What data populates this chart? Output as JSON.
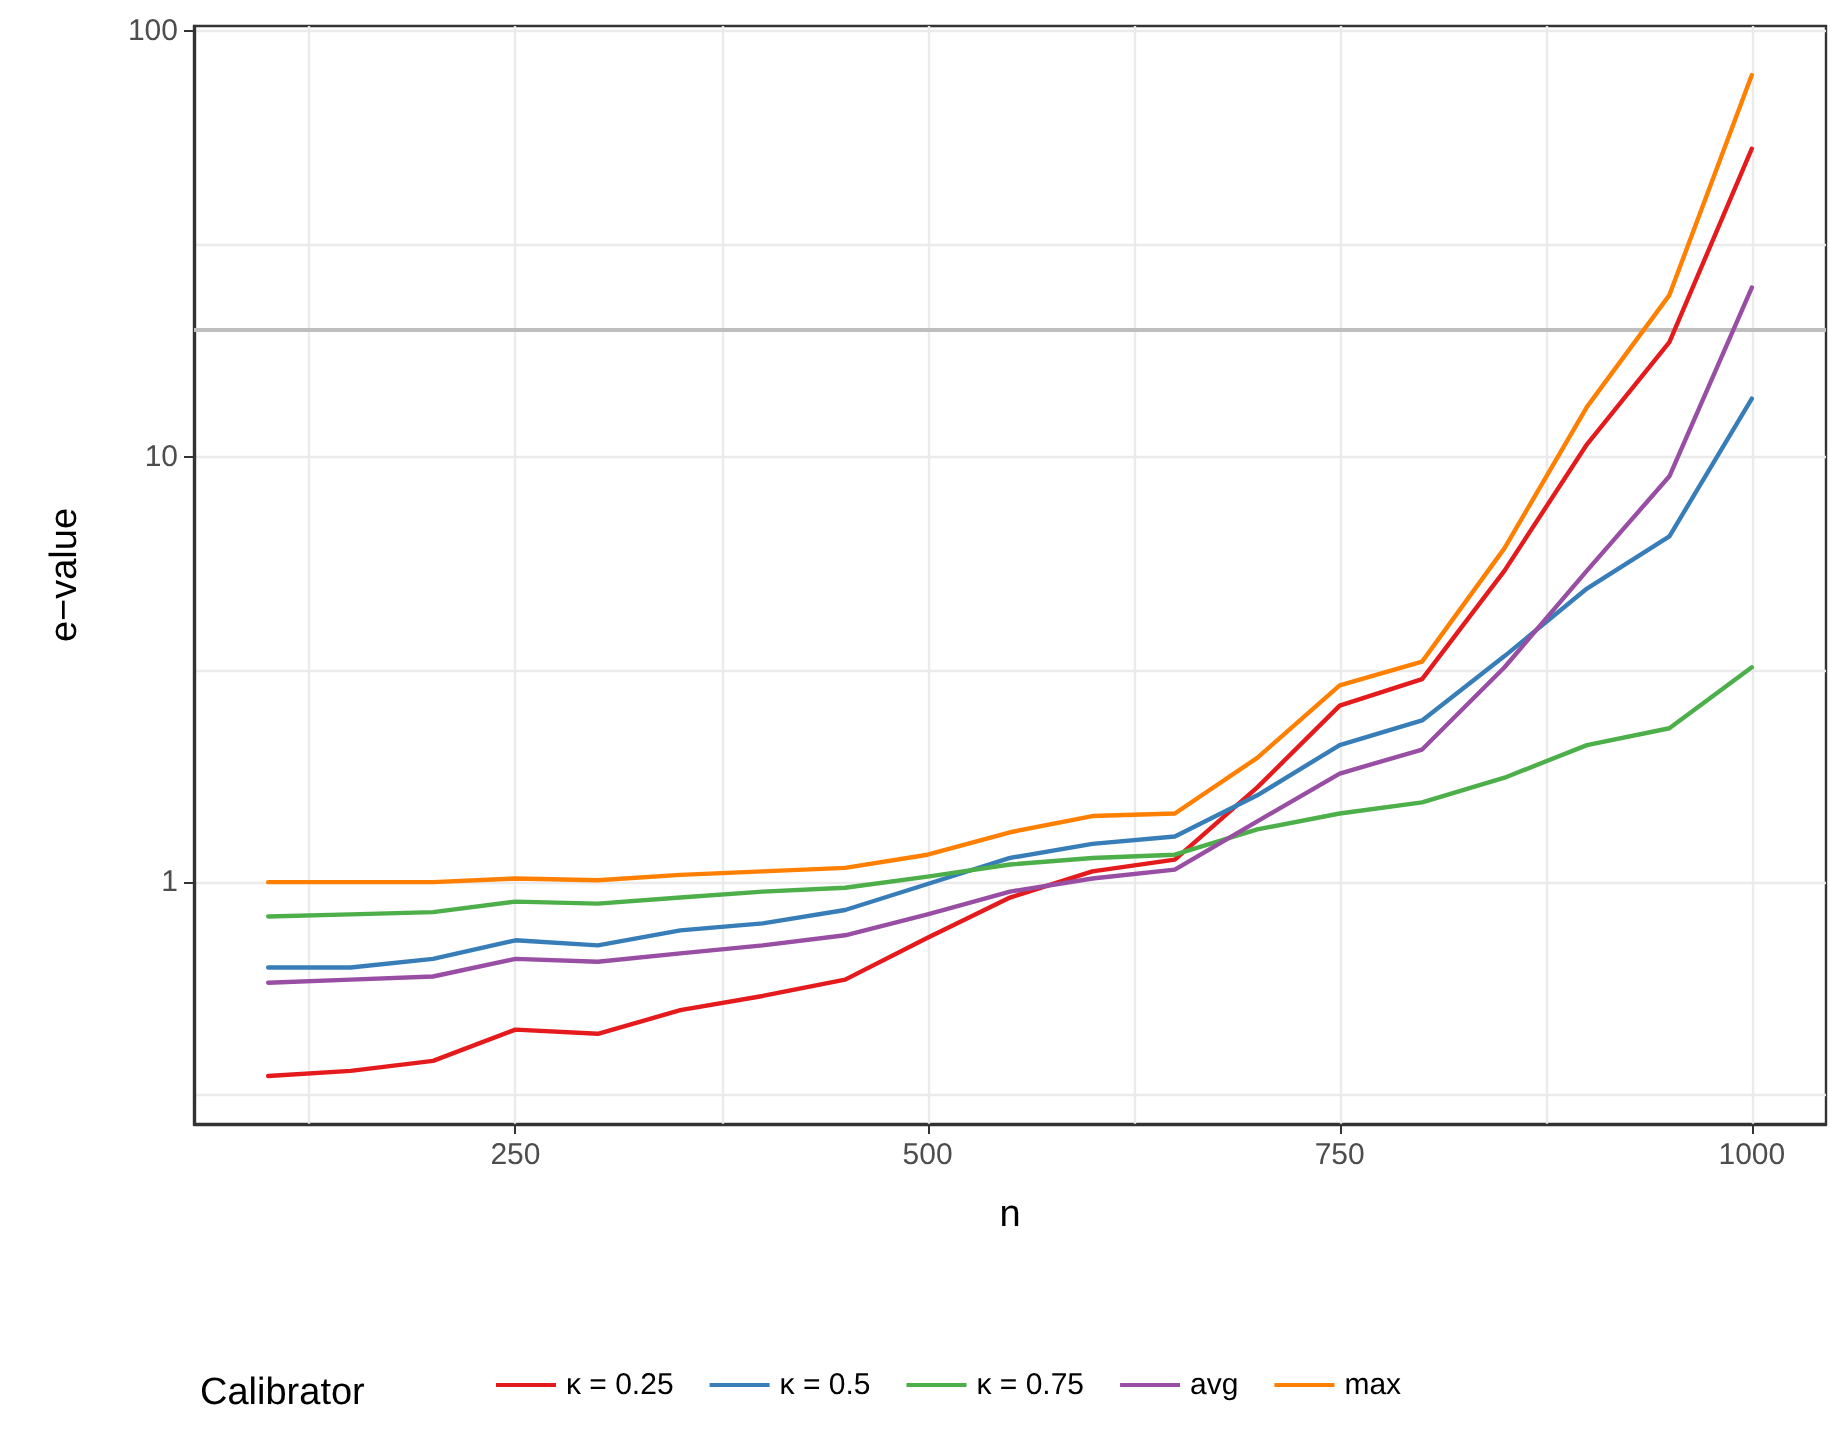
{
  "chart_data": {
    "type": "line",
    "xlabel": "n",
    "ylabel": "e−value",
    "legend_title": "Calibrator",
    "x": [
      100,
      150,
      200,
      250,
      300,
      350,
      400,
      450,
      500,
      550,
      600,
      650,
      700,
      750,
      800,
      850,
      900,
      950,
      1000
    ],
    "series": [
      {
        "name": "κ = 0.25",
        "color": "#e41a1c",
        "values": [
          0.35,
          0.36,
          0.38,
          0.45,
          0.44,
          0.5,
          0.54,
          0.59,
          0.74,
          0.92,
          1.06,
          1.13,
          1.67,
          2.6,
          3.0,
          5.4,
          10.7,
          18.6,
          53
        ]
      },
      {
        "name": "κ = 0.5",
        "color": "#377eb8",
        "values": [
          0.63,
          0.63,
          0.66,
          0.73,
          0.71,
          0.77,
          0.8,
          0.86,
          0.99,
          1.14,
          1.23,
          1.28,
          1.6,
          2.1,
          2.4,
          3.4,
          4.9,
          6.5,
          13.7
        ]
      },
      {
        "name": "κ = 0.75",
        "color": "#4daf4a",
        "values": [
          0.83,
          0.84,
          0.85,
          0.9,
          0.89,
          0.92,
          0.95,
          0.97,
          1.03,
          1.1,
          1.14,
          1.16,
          1.33,
          1.45,
          1.54,
          1.76,
          2.1,
          2.3,
          3.2
        ]
      },
      {
        "name": "avg",
        "color": "#984ea3",
        "values": [
          0.58,
          0.59,
          0.6,
          0.66,
          0.65,
          0.68,
          0.71,
          0.75,
          0.84,
          0.95,
          1.02,
          1.07,
          1.39,
          1.8,
          2.05,
          3.2,
          5.4,
          9.0,
          25
        ]
      },
      {
        "name": "max",
        "color": "#ff7f00",
        "values": [
          1.0,
          1.0,
          1.0,
          1.02,
          1.01,
          1.04,
          1.06,
          1.08,
          1.16,
          1.31,
          1.43,
          1.45,
          1.96,
          2.9,
          3.3,
          6.1,
          13.1,
          24,
          79
        ]
      }
    ],
    "xlim": [
      55,
      1045
    ],
    "xticks": [
      {
        "value": 125,
        "label": null
      },
      250,
      {
        "value": 375,
        "label": null
      },
      500,
      {
        "value": 625,
        "label": null
      },
      750,
      {
        "value": 875,
        "label": null
      },
      1000
    ],
    "ylim": [
      0.27,
      103
    ],
    "yticks": [
      {
        "value": 0.316,
        "label": null
      },
      1,
      {
        "value": 3.16,
        "label": null
      },
      10,
      {
        "value": 31.6,
        "label": null
      },
      100
    ],
    "log": "y",
    "grid": true,
    "legend": "bottom",
    "line_style": "solid",
    "marker": "none",
    "ref_lines": [
      {
        "axis": "y",
        "value": 20,
        "color": "#bebebe"
      }
    ]
  }
}
